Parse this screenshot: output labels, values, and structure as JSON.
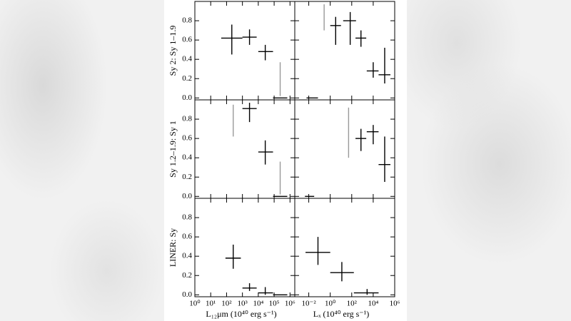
{
  "chart_data": {
    "type": "errorbar-grid",
    "xscale": "log",
    "ylim": [
      -0.02,
      1.0
    ],
    "yticks": [
      {
        "value": 0,
        "label": "0.0"
      },
      {
        "value": 0.2,
        "label": "0.2"
      },
      {
        "value": 0.4,
        "label": "0.4"
      },
      {
        "value": 0.6,
        "label": "0.6"
      },
      {
        "value": 0.8,
        "label": "0.8"
      }
    ],
    "columns": [
      {
        "xlabel": "L₁₂μm (10⁴⁰ erg s⁻¹)",
        "xlim": [
          1,
          2000000
        ],
        "xticks": [
          {
            "value": 1,
            "label": "10⁰"
          },
          {
            "value": 10,
            "label": "10¹"
          },
          {
            "value": 100,
            "label": "10²"
          },
          {
            "value": 1000,
            "label": "10³"
          },
          {
            "value": 10000,
            "label": "10⁴"
          },
          {
            "value": 100000,
            "label": "10⁵"
          },
          {
            "value": 1000000,
            "label": "10⁶"
          }
        ]
      },
      {
        "xlabel": "Lₓ (10⁴⁰ erg s⁻¹)",
        "xlim": [
          0.0005,
          1000000
        ],
        "xticks": [
          {
            "value": 0.01,
            "label": "10⁻²"
          },
          {
            "value": 1,
            "label": "10⁰"
          },
          {
            "value": 100,
            "label": "10²"
          },
          {
            "value": 10000,
            "label": "10⁴"
          },
          {
            "value": 1000000,
            "label": "10⁶"
          }
        ]
      }
    ],
    "rows": [
      {
        "ylabel": "Sy 2: Sy 1–1.9",
        "panels": [
          {
            "series": [
              {
                "color": "#000000",
                "x": [
                  214,
                  2800,
                  27500,
                  240000
                ],
                "x_low": [
                  46,
                  1000,
                  10000,
                  85000
                ],
                "x_high": [
                  1000,
                  7900,
                  85000,
                  676000
                ],
                "values": [
                  0.62,
                  0.63,
                  0.48,
                  0
                ],
                "y_low": [
                  0.45,
                  0.55,
                  0.39,
                  null
                ],
                "y_high": [
                  0.76,
                  0.71,
                  0.55,
                  null
                ]
              },
              {
                "color": "#999999",
                "x": [
                  240000
                ],
                "y_low": [
                  0.02
                ],
                "y_high": [
                  0.37
                ]
              }
            ]
          },
          {
            "series": [
              {
                "color": "#000000",
                "x": [
                  0.02,
                  3.2,
                  72,
                  724,
                  10000,
                  117000
                ],
                "x_low": [
                  0.0062,
                  1,
                  16,
                  224,
                  2500,
                  31600
                ],
                "x_high": [
                  0.072,
                  10,
                  251,
                  2240,
                  31600,
                  398000
                ],
                "values": [
                  0,
                  0.75,
                  0.8,
                  0.62,
                  0.28,
                  0.24
                ],
                "y_low": [
                  null,
                  0.55,
                  0.55,
                  0.53,
                  0.21,
                  0.15
                ],
                "y_high": [
                  null,
                  0.84,
                  0.89,
                  0.7,
                  0.37,
                  0.52
                ]
              },
              {
                "color": "#999999",
                "x": [
                  0.27
                ],
                "y_low": [
                  0.7
                ],
                "y_high": [
                  0.97
                ]
              }
            ]
          }
        ]
      },
      {
        "ylabel": "Sy 1.2–1.9: Sy 1",
        "panels": [
          {
            "series": [
              {
                "color": "#000000",
                "x": [
                  2800,
                  27500,
                  240000
                ],
                "x_low": [
                  1000,
                  10000,
                  85000
                ],
                "x_high": [
                  7900,
                  85000,
                  676000
                ],
                "values": [
                  0.91,
                  0.46,
                  0
                ],
                "y_low": [
                  0.77,
                  0.33,
                  null
                ],
                "y_high": [
                  0.97,
                  0.58,
                  null
                ]
              },
              {
                "color": "#999999",
                "x": [
                  263,
                  240000
                ],
                "y_low": [
                  0.62,
                  0.02
                ],
                "y_high": [
                  0.95,
                  0.36
                ]
              }
            ]
          },
          {
            "series": [
              {
                "color": "#000000",
                "x": [
                  0.012,
                  724,
                  10000,
                  117000
                ],
                "x_low": [
                  0.0044,
                  224,
                  2500,
                  31600
                ],
                "x_high": [
                  0.032,
                  2240,
                  31600,
                  398000
                ],
                "values": [
                  0,
                  0.6,
                  0.67,
                  0.33
                ],
                "y_low": [
                  null,
                  0.47,
                  0.54,
                  0.15
                ],
                "y_high": [
                  null,
                  0.7,
                  0.74,
                  0.62
                ]
              },
              {
                "color": "#999999",
                "x": [
                  51
                ],
                "y_low": [
                  0.4
                ],
                "y_high": [
                  0.92
                ]
              }
            ]
          }
        ]
      },
      {
        "ylabel": "LINER: Sy",
        "panels": [
          {
            "series": [
              {
                "color": "#000000",
                "x": [
                  263,
                  2800,
                  27500,
                  240000
                ],
                "x_low": [
                  85,
                  1000,
                  10000,
                  85000
                ],
                "x_high": [
                  794,
                  7900,
                  85000,
                  676000
                ],
                "values": [
                  0.38,
                  0.07,
                  0.02,
                  0
                ],
                "y_low": [
                  0.27,
                  0.04,
                  0,
                  null
                ],
                "y_high": [
                  0.52,
                  0.12,
                  0.08,
                  null
                ]
              }
            ]
          },
          {
            "series": [
              {
                "color": "#000000",
                "x": [
                  0.072,
                  12,
                  2700
                ],
                "x_low": [
                  0.005,
                  1,
                  158
                ],
                "x_high": [
                  1,
                  158,
                  31600
                ],
                "values": [
                  0.44,
                  0.23,
                  0.02
                ],
                "y_low": [
                  0.31,
                  0.14,
                  0
                ],
                "y_high": [
                  0.6,
                  0.34,
                  0.06
                ]
              }
            ]
          }
        ]
      }
    ]
  }
}
